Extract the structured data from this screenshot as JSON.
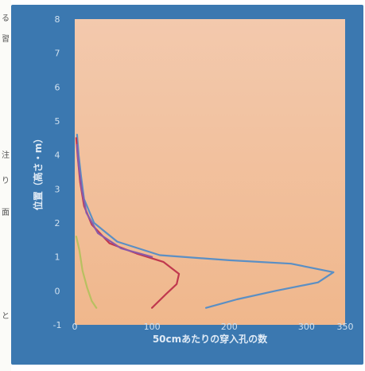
{
  "doc_chars": [
    "る",
    "習",
    "",
    "",
    "",
    "",
    "注",
    "り",
    "面",
    "",
    "",
    "",
    "",
    "と"
  ],
  "chart_data": {
    "type": "line",
    "xlabel": "50cmあたりの穿入孔の数",
    "ylabel": "位置（高さ・m）",
    "xlim": [
      0,
      350
    ],
    "ylim": [
      -1,
      8
    ],
    "xticks": [
      0,
      50,
      100,
      150,
      200,
      250,
      300,
      350
    ],
    "xtick_labels": [
      "0",
      "",
      "100",
      "",
      "200",
      "",
      "300",
      "350"
    ],
    "yticks": [
      -1,
      0,
      1,
      2,
      3,
      4,
      5,
      6,
      7,
      8
    ],
    "series": [
      {
        "color": "#5b8fc4",
        "points": [
          [
            3,
            4.6
          ],
          [
            5,
            4.0
          ],
          [
            8,
            3.4
          ],
          [
            12,
            2.7
          ],
          [
            25,
            2.0
          ],
          [
            55,
            1.45
          ],
          [
            110,
            1.05
          ],
          [
            200,
            0.9
          ],
          [
            280,
            0.8
          ],
          [
            335,
            0.55
          ],
          [
            315,
            0.25
          ],
          [
            260,
            0.0
          ],
          [
            210,
            -0.25
          ],
          [
            170,
            -0.5
          ]
        ]
      },
      {
        "color": "#c0384e",
        "points": [
          [
            2,
            4.5
          ],
          [
            4,
            3.9
          ],
          [
            7,
            3.2
          ],
          [
            12,
            2.5
          ],
          [
            22,
            1.95
          ],
          [
            45,
            1.4
          ],
          [
            80,
            1.1
          ],
          [
            115,
            0.85
          ],
          [
            135,
            0.5
          ],
          [
            132,
            0.2
          ],
          [
            118,
            -0.1
          ],
          [
            100,
            -0.5
          ]
        ]
      },
      {
        "color": "#8a5aa8",
        "points": [
          [
            3,
            4.3
          ],
          [
            5,
            3.7
          ],
          [
            9,
            3.0
          ],
          [
            15,
            2.3
          ],
          [
            30,
            1.7
          ],
          [
            60,
            1.25
          ],
          [
            100,
            1.0
          ]
        ]
      },
      {
        "color": "#b8c060",
        "points": [
          [
            2,
            1.6
          ],
          [
            6,
            1.2
          ],
          [
            10,
            0.6
          ],
          [
            16,
            0.1
          ],
          [
            22,
            -0.3
          ],
          [
            28,
            -0.5
          ]
        ]
      }
    ]
  }
}
